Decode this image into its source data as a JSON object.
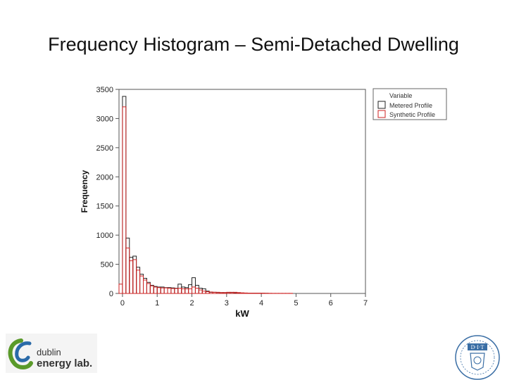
{
  "slide": {
    "title": "Frequency Histogram – Semi-Detached Dwelling"
  },
  "logos": {
    "left_text_line1": "dublin",
    "left_text_line2": "energy lab.",
    "right_text": "D·I·T"
  },
  "colors": {
    "metered": "#222222",
    "synthetic": "#cc2222",
    "frame": "#555555",
    "logo_green": "#5a9a2a",
    "logo_blue": "#2a6aa8",
    "dit_blue": "#3a6ea5"
  },
  "chart_data": {
    "type": "bar",
    "xlabel": "kW",
    "ylabel": "Frequency",
    "xlim": [
      -0.1,
      7
    ],
    "ylim": [
      0,
      3500
    ],
    "x_ticks": [
      0,
      1,
      2,
      3,
      4,
      5,
      6,
      7
    ],
    "y_ticks": [
      0,
      500,
      1000,
      1500,
      2000,
      2500,
      3000,
      3500
    ],
    "bin_width": 0.1,
    "grid": false,
    "legend": {
      "title": "Variable",
      "placement": "top-right outside",
      "entries": [
        "Metered Profile",
        "Synthetic Profile"
      ]
    },
    "series": [
      {
        "name": "Metered Profile",
        "bin_starts": [
          -0.1,
          0.0,
          0.1,
          0.2,
          0.3,
          0.4,
          0.5,
          0.6,
          0.7,
          0.8,
          0.9,
          1.0,
          1.1,
          1.2,
          1.3,
          1.4,
          1.5,
          1.6,
          1.7,
          1.8,
          1.9,
          2.0,
          2.1,
          2.2,
          2.3,
          2.4,
          2.5,
          2.6,
          2.7,
          2.8,
          2.9,
          3.0,
          3.1,
          3.2,
          3.3,
          3.4,
          3.5,
          3.6,
          3.7,
          3.8,
          3.9,
          4.0,
          4.1,
          4.2
        ],
        "values": [
          0,
          3380,
          950,
          620,
          640,
          450,
          330,
          260,
          190,
          140,
          120,
          110,
          110,
          100,
          100,
          95,
          90,
          160,
          110,
          100,
          150,
          270,
          140,
          90,
          80,
          40,
          20,
          20,
          15,
          15,
          15,
          15,
          15,
          10,
          10,
          8,
          5,
          5,
          5,
          5,
          5,
          5,
          3,
          0
        ]
      },
      {
        "name": "Synthetic Profile",
        "bin_starts": [
          -0.1,
          0.0,
          0.1,
          0.2,
          0.3,
          0.4,
          0.5,
          0.6,
          0.7,
          0.8,
          0.9,
          1.0,
          1.1,
          1.2,
          1.3,
          1.4,
          1.5,
          1.6,
          1.7,
          1.8,
          1.9,
          2.0,
          2.1,
          2.2,
          2.3,
          2.4,
          2.5,
          2.6,
          2.7,
          2.8,
          2.9,
          3.0,
          3.1,
          3.2,
          3.3,
          3.4,
          3.5,
          3.6,
          3.7,
          3.8,
          3.9,
          4.0,
          4.1,
          4.2,
          4.3,
          4.4,
          4.5,
          4.6,
          4.7,
          4.8,
          5.0
        ],
        "values": [
          160,
          3200,
          780,
          560,
          580,
          400,
          300,
          230,
          170,
          130,
          110,
          100,
          95,
          95,
          90,
          85,
          85,
          90,
          80,
          80,
          80,
          110,
          90,
          60,
          40,
          30,
          25,
          20,
          20,
          15,
          15,
          20,
          20,
          20,
          15,
          10,
          8,
          5,
          5,
          5,
          5,
          5,
          3,
          3,
          2,
          2,
          2,
          2,
          2,
          2,
          0
        ]
      }
    ]
  }
}
